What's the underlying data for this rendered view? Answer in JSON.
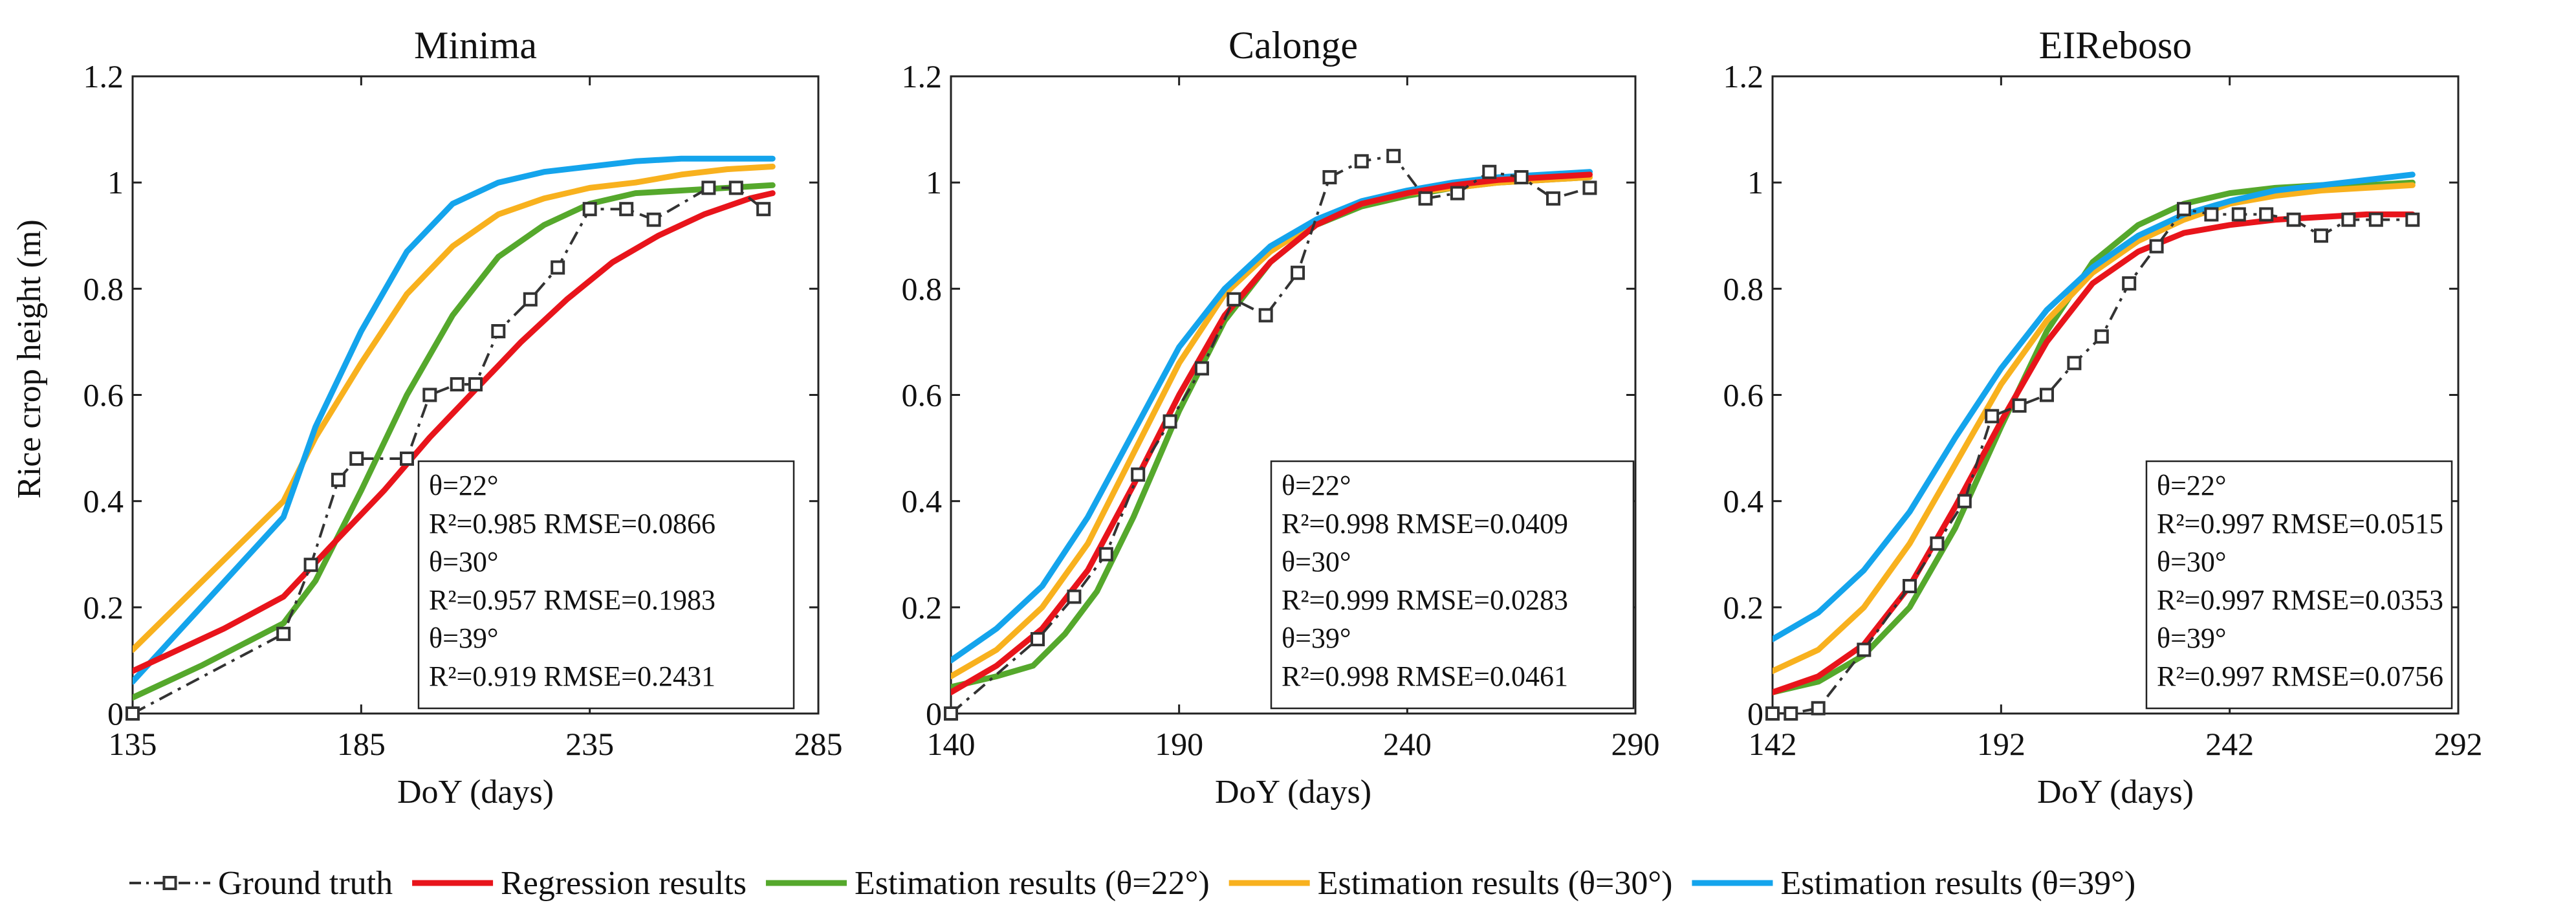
{
  "figure": {
    "ylabel": "Rice crop height (m)",
    "legend": {
      "items": [
        {
          "key": "gt",
          "label": "Ground truth"
        },
        {
          "key": "reg",
          "label": "Regression results"
        },
        {
          "key": "e22",
          "label": "Estimation results (θ=22°)"
        },
        {
          "key": "e30",
          "label": "Estimation results (θ=30°)"
        },
        {
          "key": "e39",
          "label": "Estimation results (θ=39°)"
        }
      ]
    }
  },
  "series_colors": {
    "gt": "#333333",
    "reg": "#e8141b",
    "e22": "#55a82c",
    "e30": "#f8b11e",
    "e39": "#14a4ec"
  },
  "chart_data": [
    {
      "type": "line",
      "title": "Minima",
      "xlabel": "DoY (days)",
      "ylabel": "Rice crop height (m)",
      "xlim": [
        135,
        285
      ],
      "ylim": [
        0,
        1.2
      ],
      "xticks": [
        "135",
        "185",
        "235",
        "285"
      ],
      "yticks": [
        "0",
        "0.2",
        "0.4",
        "0.6",
        "0.8",
        "1",
        "1.2"
      ],
      "stats": [
        "θ=22°",
        "R²=0.985 RMSE=0.0866",
        "θ=30°",
        "R²=0.957 RMSE=0.1983",
        "θ=39°",
        "R²=0.919 RMSE=0.2431"
      ],
      "ground_truth": {
        "x": [
          135,
          168,
          174,
          180,
          184,
          195,
          200,
          206,
          210,
          215,
          222,
          228,
          235,
          243,
          249,
          261,
          267,
          273
        ],
        "y": [
          0.0,
          0.15,
          0.28,
          0.44,
          0.48,
          0.48,
          0.6,
          0.62,
          0.62,
          0.72,
          0.78,
          0.84,
          0.95,
          0.95,
          0.93,
          0.99,
          0.99,
          0.95
        ]
      },
      "series": [
        {
          "key": "reg",
          "name": "Regression results",
          "x": [
            135,
            155,
            168,
            180,
            190,
            200,
            210,
            220,
            230,
            240,
            250,
            260,
            270,
            275
          ],
          "y": [
            0.08,
            0.16,
            0.22,
            0.33,
            0.42,
            0.52,
            0.61,
            0.7,
            0.78,
            0.85,
            0.9,
            0.94,
            0.97,
            0.98
          ]
        },
        {
          "key": "e22",
          "name": "Estimation results (θ=22°)",
          "x": [
            135,
            150,
            168,
            175,
            185,
            195,
            205,
            215,
            225,
            235,
            245,
            255,
            265,
            275
          ],
          "y": [
            0.03,
            0.09,
            0.17,
            0.25,
            0.42,
            0.6,
            0.75,
            0.86,
            0.92,
            0.96,
            0.98,
            0.985,
            0.99,
            0.995
          ]
        },
        {
          "key": "e30",
          "name": "Estimation results (θ=30°)",
          "x": [
            135,
            168,
            175,
            185,
            195,
            205,
            215,
            225,
            235,
            245,
            255,
            265,
            275
          ],
          "y": [
            0.12,
            0.4,
            0.52,
            0.66,
            0.79,
            0.88,
            0.94,
            0.97,
            0.99,
            1.0,
            1.015,
            1.025,
            1.03
          ]
        },
        {
          "key": "e39",
          "name": "Estimation results (θ=39°)",
          "x": [
            135,
            168,
            175,
            185,
            195,
            205,
            215,
            225,
            235,
            245,
            255,
            265,
            275
          ],
          "y": [
            0.06,
            0.37,
            0.54,
            0.72,
            0.87,
            0.96,
            1.0,
            1.02,
            1.03,
            1.04,
            1.045,
            1.045,
            1.045
          ]
        }
      ]
    },
    {
      "type": "line",
      "title": "Calonge",
      "xlabel": "DoY (days)",
      "ylabel": "",
      "xlim": [
        140,
        290
      ],
      "ylim": [
        0,
        1.2
      ],
      "xticks": [
        "140",
        "190",
        "240",
        "290"
      ],
      "yticks": [
        "0",
        "0.2",
        "0.4",
        "0.6",
        "0.8",
        "1",
        "1.2"
      ],
      "stats": [
        "θ=22°",
        "R²=0.998 RMSE=0.0409",
        "θ=30°",
        "R²=0.999 RMSE=0.0283",
        "θ=39°",
        "R²=0.998 RMSE=0.0461"
      ],
      "ground_truth": {
        "x": [
          140,
          159,
          167,
          174,
          181,
          188,
          195,
          202,
          209,
          216,
          223,
          230,
          237,
          244,
          251,
          258,
          265,
          272,
          280
        ],
        "y": [
          0.0,
          0.14,
          0.22,
          0.3,
          0.45,
          0.55,
          0.65,
          0.78,
          0.75,
          0.83,
          1.01,
          1.04,
          1.05,
          0.97,
          0.98,
          1.02,
          1.01,
          0.97,
          0.99
        ]
      },
      "series": [
        {
          "key": "reg",
          "name": "Regression results",
          "x": [
            140,
            150,
            160,
            170,
            180,
            190,
            200,
            210,
            220,
            230,
            240,
            250,
            260,
            270,
            280
          ],
          "y": [
            0.04,
            0.09,
            0.16,
            0.27,
            0.43,
            0.6,
            0.75,
            0.85,
            0.92,
            0.96,
            0.98,
            0.995,
            1.005,
            1.01,
            1.015
          ]
        },
        {
          "key": "e22",
          "name": "Estimation results (θ=22°)",
          "x": [
            140,
            150,
            158,
            165,
            172,
            180,
            190,
            200,
            210,
            220,
            230,
            240,
            250,
            260,
            270,
            280
          ],
          "y": [
            0.05,
            0.07,
            0.09,
            0.15,
            0.23,
            0.37,
            0.57,
            0.74,
            0.85,
            0.92,
            0.955,
            0.975,
            0.99,
            1.0,
            1.005,
            1.01
          ]
        },
        {
          "key": "e30",
          "name": "Estimation results (θ=30°)",
          "x": [
            140,
            150,
            160,
            170,
            180,
            190,
            200,
            210,
            220,
            230,
            240,
            250,
            260,
            270,
            280
          ],
          "y": [
            0.07,
            0.12,
            0.2,
            0.32,
            0.49,
            0.66,
            0.79,
            0.87,
            0.925,
            0.96,
            0.98,
            0.99,
            1.0,
            1.005,
            1.01
          ]
        },
        {
          "key": "e39",
          "name": "Estimation results (θ=39°)",
          "x": [
            140,
            150,
            160,
            170,
            180,
            190,
            200,
            210,
            220,
            230,
            240,
            250,
            260,
            270,
            280
          ],
          "y": [
            0.1,
            0.16,
            0.24,
            0.37,
            0.53,
            0.69,
            0.8,
            0.88,
            0.93,
            0.965,
            0.985,
            1.0,
            1.01,
            1.015,
            1.02
          ]
        }
      ]
    },
    {
      "type": "line",
      "title": "EIReboso",
      "xlabel": "DoY (days)",
      "ylabel": "",
      "xlim": [
        142,
        292
      ],
      "ylim": [
        0,
        1.2
      ],
      "xticks": [
        "142",
        "192",
        "242",
        "292"
      ],
      "yticks": [
        "0",
        "0.2",
        "0.4",
        "0.6",
        "0.8",
        "1",
        "1.2"
      ],
      "stats": [
        "θ=22°",
        "R²=0.997 RMSE=0.0515",
        "θ=30°",
        "R²=0.997 RMSE=0.0353",
        "θ=39°",
        "R²=0.997 RMSE=0.0756"
      ],
      "ground_truth": {
        "x": [
          142,
          146,
          152,
          162,
          172,
          178,
          184,
          190,
          196,
          202,
          208,
          214,
          220,
          226,
          232,
          238,
          244,
          250,
          256,
          262,
          268,
          274,
          282
        ],
        "y": [
          0.0,
          0.0,
          0.01,
          0.12,
          0.24,
          0.32,
          0.4,
          0.56,
          0.58,
          0.6,
          0.66,
          0.71,
          0.81,
          0.88,
          0.95,
          0.94,
          0.94,
          0.94,
          0.93,
          0.9,
          0.93,
          0.93,
          0.93
        ]
      },
      "series": [
        {
          "key": "reg",
          "name": "Regression results",
          "x": [
            142,
            152,
            162,
            172,
            182,
            192,
            202,
            212,
            222,
            232,
            242,
            252,
            262,
            272,
            282
          ],
          "y": [
            0.04,
            0.07,
            0.13,
            0.24,
            0.39,
            0.55,
            0.7,
            0.81,
            0.87,
            0.905,
            0.92,
            0.93,
            0.935,
            0.94,
            0.94
          ]
        },
        {
          "key": "e22",
          "name": "Estimation results (θ=22°)",
          "x": [
            142,
            152,
            162,
            172,
            182,
            192,
            202,
            212,
            222,
            232,
            242,
            252,
            262,
            272,
            282
          ],
          "y": [
            0.04,
            0.06,
            0.11,
            0.2,
            0.35,
            0.54,
            0.72,
            0.85,
            0.92,
            0.96,
            0.98,
            0.99,
            0.995,
            0.995,
            1.0
          ]
        },
        {
          "key": "e30",
          "name": "Estimation results (θ=30°)",
          "x": [
            142,
            152,
            162,
            172,
            182,
            192,
            202,
            212,
            222,
            232,
            242,
            252,
            262,
            272,
            282
          ],
          "y": [
            0.08,
            0.12,
            0.2,
            0.32,
            0.47,
            0.62,
            0.74,
            0.83,
            0.89,
            0.93,
            0.96,
            0.975,
            0.985,
            0.99,
            0.995
          ]
        },
        {
          "key": "e39",
          "name": "Estimation results (θ=39°)",
          "x": [
            142,
            152,
            162,
            172,
            182,
            192,
            202,
            212,
            222,
            232,
            242,
            252,
            262,
            272,
            282
          ],
          "y": [
            0.14,
            0.19,
            0.27,
            0.38,
            0.52,
            0.65,
            0.76,
            0.84,
            0.9,
            0.94,
            0.965,
            0.985,
            0.995,
            1.005,
            1.015
          ]
        }
      ]
    }
  ]
}
